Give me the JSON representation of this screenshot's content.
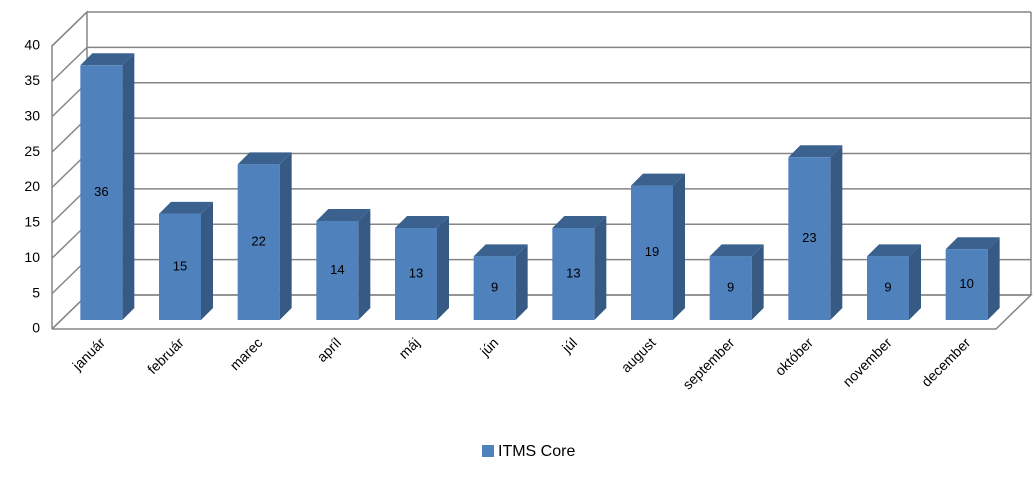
{
  "chart_data": {
    "type": "bar3d",
    "categories": [
      "január",
      "február",
      "marec",
      "apríl",
      "máj",
      "jún",
      "júl",
      "august",
      "september",
      "október",
      "november",
      "december"
    ],
    "series": [
      {
        "name": "ITMS Core",
        "color": "#4f81bd",
        "values": [
          36,
          15,
          22,
          14,
          13,
          9,
          13,
          19,
          9,
          23,
          9,
          10
        ]
      }
    ],
    "ylim": [
      0,
      40
    ],
    "yticks": [
      0,
      5,
      10,
      15,
      20,
      25,
      30,
      35,
      40
    ],
    "grid": true,
    "legend": "bottom"
  }
}
